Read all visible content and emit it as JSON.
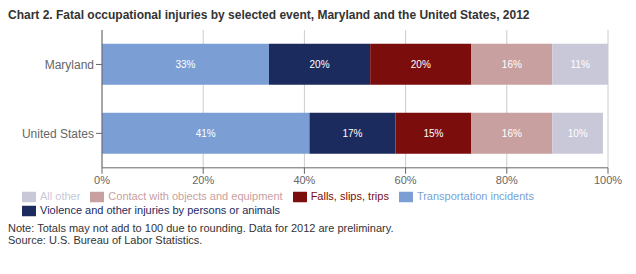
{
  "chart_data": {
    "type": "bar",
    "orientation": "horizontal",
    "stacked": true,
    "title": "Chart 2. Fatal occupational injuries by selected event, Maryland and the United States, 2012",
    "categories": [
      "Maryland",
      "United States"
    ],
    "series": [
      {
        "name": "Transportation incidents",
        "color": "#7B9FD4",
        "values": [
          33,
          41
        ],
        "value_labels": [
          "33%",
          "41%"
        ]
      },
      {
        "name": "Violence and other injuries by persons or animals",
        "color": "#1C2B5E",
        "values": [
          20,
          17
        ],
        "value_labels": [
          "20%",
          "17%"
        ]
      },
      {
        "name": "Falls, slips, trips",
        "color": "#7B0D0D",
        "values": [
          20,
          15
        ],
        "value_labels": [
          "20%",
          "15%"
        ]
      },
      {
        "name": "Contact with objects and equipment",
        "color": "#C9A0A0",
        "values": [
          16,
          16
        ],
        "value_labels": [
          "16%",
          "16%"
        ]
      },
      {
        "name": "All other",
        "color": "#C8C8D8",
        "values": [
          11,
          10
        ],
        "value_labels": [
          "11%",
          "10%"
        ]
      }
    ],
    "xlim": [
      0,
      100
    ],
    "xticks": [
      {
        "value": 0,
        "label": "0%"
      },
      {
        "value": 20,
        "label": "20%"
      },
      {
        "value": 40,
        "label": "40%"
      },
      {
        "value": 60,
        "label": "60%"
      },
      {
        "value": 80,
        "label": "80%"
      },
      {
        "value": 100,
        "label": "100%"
      }
    ],
    "grid": true,
    "data_labels": true,
    "legend": "bottom",
    "annotations": [
      "Note: Totals may not add to 100 due to rounding. Data for 2012 are preliminary.",
      "Source: U.S. Bureau of Labor Statistics."
    ]
  }
}
